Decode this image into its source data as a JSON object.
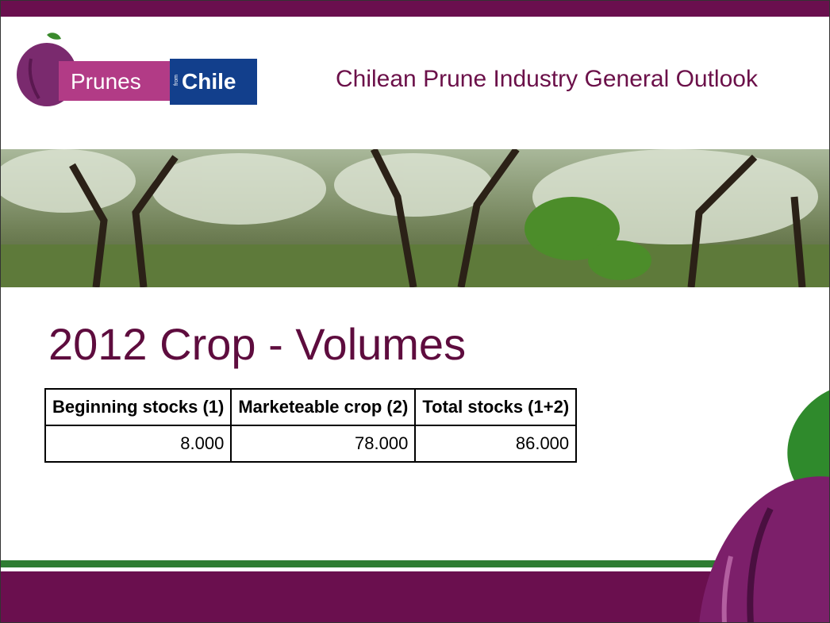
{
  "header": {
    "logo": {
      "left": "Prunes",
      "middle": "from",
      "right": "Chile"
    },
    "title": "Chilean Prune Industry General Outlook"
  },
  "slide": {
    "title": "2012 Crop - Volumes"
  },
  "table": {
    "header": [
      "Beginning stocks (1)",
      "Marketeable crop (2)",
      "Total stocks (1+2)"
    ],
    "rows": [
      [
        "8.000",
        "78.000",
        "86.000"
      ]
    ]
  }
}
